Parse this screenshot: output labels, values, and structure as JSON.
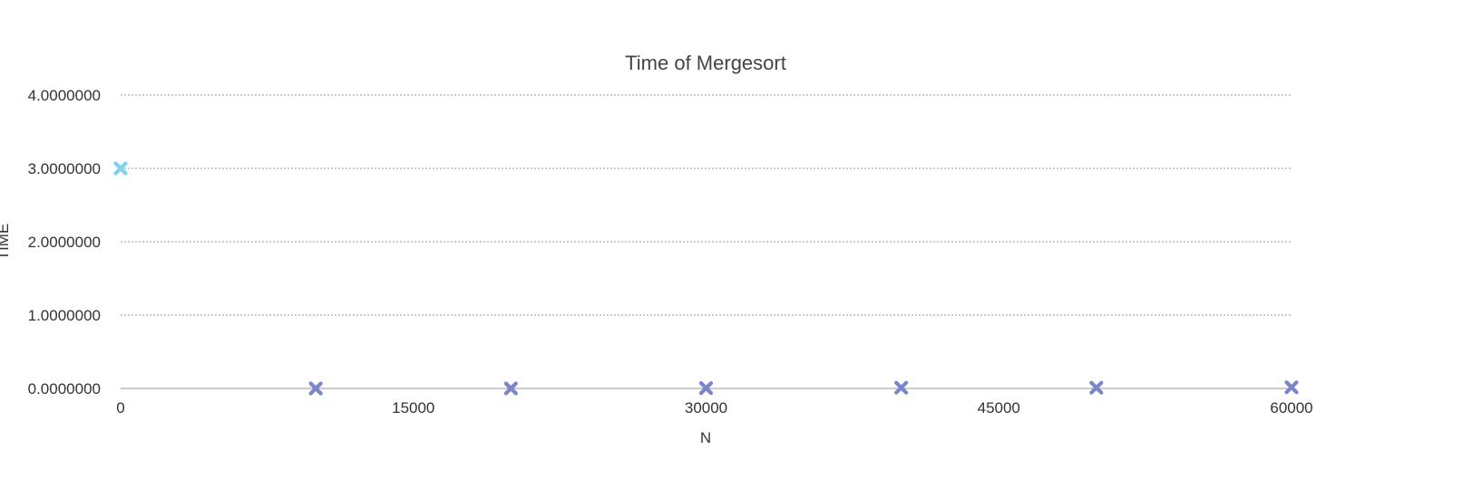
{
  "chart_data": {
    "type": "scatter",
    "title": "Time of Mergesort",
    "xlabel": "N",
    "ylabel": "TIME",
    "xlim": [
      0,
      60000
    ],
    "ylim": [
      0,
      4
    ],
    "x_ticks": [
      0,
      15000,
      30000,
      45000,
      60000
    ],
    "x_tick_labels": [
      "0",
      "15000",
      "30000",
      "45000",
      "60000"
    ],
    "y_ticks": [
      0,
      1,
      2,
      3,
      4
    ],
    "y_tick_labels": [
      "0.0000000",
      "1.0000000",
      "2.0000000",
      "3.0000000",
      "4.0000000"
    ],
    "grid": "horizontal dotted",
    "legend": "none",
    "marker": "x",
    "points": [
      {
        "x": 0,
        "y": 3.0,
        "color": "#7dd3f0"
      },
      {
        "x": 10000,
        "y": 0.0,
        "color": "#7b86c8"
      },
      {
        "x": 20000,
        "y": 0.0,
        "color": "#7b86c8"
      },
      {
        "x": 30000,
        "y": 0.005,
        "color": "#7b86c8"
      },
      {
        "x": 40000,
        "y": 0.01,
        "color": "#7b86c8"
      },
      {
        "x": 50000,
        "y": 0.01,
        "color": "#7b86c8"
      },
      {
        "x": 60000,
        "y": 0.015,
        "color": "#7b86c8"
      }
    ]
  }
}
